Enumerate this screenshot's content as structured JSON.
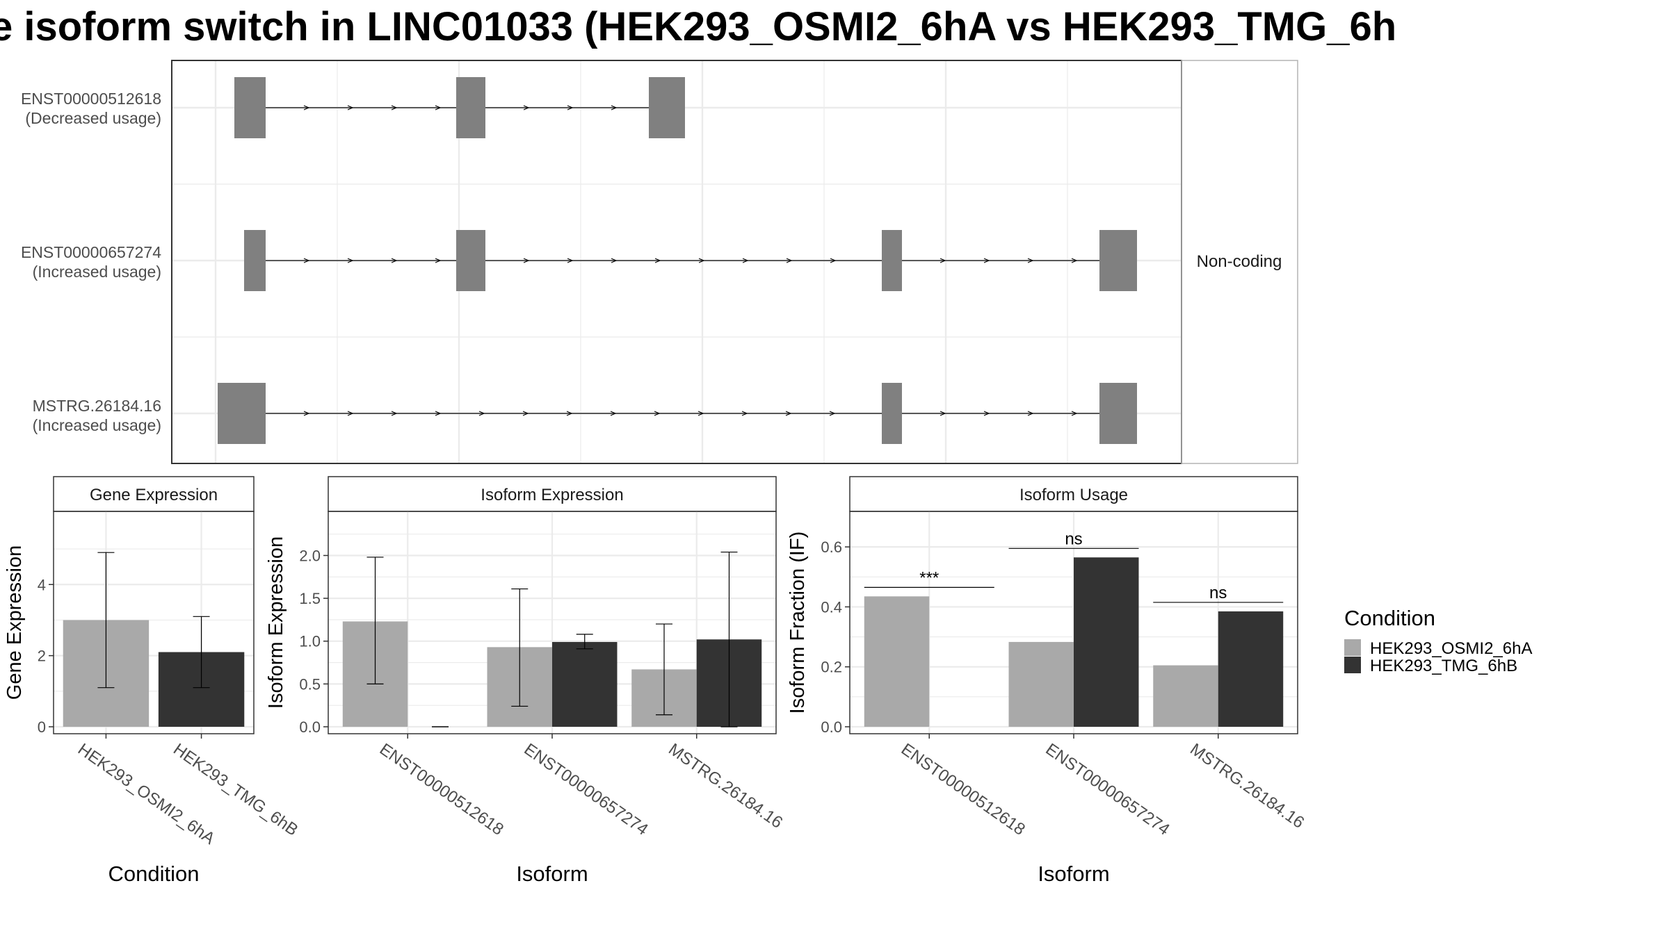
{
  "title": "e isoform switch in LINC01033 (HEK293_OSMI2_6hA vs HEK293_TMG_6h",
  "colors": {
    "condA": "#a9a9a9",
    "condB": "#333333",
    "exon": "#808080",
    "panel_border": "#333333",
    "strip_border": "#b3b3b3",
    "grid": "#ebebeb",
    "axis_text": "#4d4d4d"
  },
  "structure": {
    "strip_label": "Non-coding",
    "transcripts": [
      {
        "id": "ENST00000512618",
        "usage": "(Decreased usage)"
      },
      {
        "id": "ENST00000657274",
        "usage": "(Increased usage)"
      },
      {
        "id": "MSTRG.26184.16",
        "usage": "(Increased usage)"
      }
    ]
  },
  "legend": {
    "title": "Condition",
    "items": [
      "HEK293_OSMI2_6hA",
      "HEK293_TMG_6hB"
    ]
  },
  "chart_data": [
    {
      "type": "bar",
      "title": "Gene Expression",
      "xlabel": "Condition",
      "ylabel": "Gene Expression",
      "categories": [
        "HEK293_OSMI2_6hA",
        "HEK293_TMG_6hB"
      ],
      "values": [
        3.0,
        2.1
      ],
      "error_low": [
        1.1,
        1.1
      ],
      "error_high": [
        4.9,
        3.1
      ],
      "ylim": [
        0,
        5.9
      ],
      "yticks": [
        0,
        2,
        4
      ],
      "ytick_labels": [
        "0",
        "2",
        "4"
      ]
    },
    {
      "type": "bar",
      "title": "Isoform Expression",
      "xlabel": "Isoform",
      "ylabel": "Isoform Expression",
      "categories": [
        "ENST00000512618",
        "ENST00000657274",
        "MSTRG.26184.16"
      ],
      "series": [
        {
          "name": "HEK293_OSMI2_6hA",
          "values": [
            1.23,
            0.93,
            0.67
          ],
          "error_low": [
            0.5,
            0.24,
            0.14
          ],
          "error_high": [
            1.98,
            1.61,
            1.2
          ]
        },
        {
          "name": "HEK293_TMG_6hB",
          "values": [
            0.0,
            0.99,
            1.02
          ],
          "error_low": [
            0.0,
            0.91,
            0.0
          ],
          "error_high": [
            0.0,
            1.08,
            2.04
          ]
        }
      ],
      "ylim": [
        0,
        2.45
      ],
      "yticks": [
        0,
        0.5,
        1.0,
        1.5,
        2.0
      ],
      "ytick_labels": [
        "0.0",
        "0.5",
        "1.0",
        "1.5",
        "2.0"
      ]
    },
    {
      "type": "bar",
      "title": "Isoform Usage",
      "xlabel": "Isoform",
      "ylabel": "Isoform Fraction (IF)",
      "categories": [
        "ENST00000512618",
        "ENST00000657274",
        "MSTRG.26184.16"
      ],
      "series": [
        {
          "name": "HEK293_OSMI2_6hA",
          "values": [
            0.435,
            0.283,
            0.205
          ]
        },
        {
          "name": "HEK293_TMG_6hB",
          "values": [
            0.0,
            0.565,
            0.385
          ]
        }
      ],
      "significance": [
        "***",
        "ns",
        "ns"
      ],
      "sig_level": [
        0.465,
        0.595,
        0.415
      ],
      "ylim": [
        0,
        0.7
      ],
      "yticks": [
        0,
        0.2,
        0.4,
        0.6
      ],
      "ytick_labels": [
        "0.0",
        "0.2",
        "0.4",
        "0.6"
      ]
    }
  ]
}
